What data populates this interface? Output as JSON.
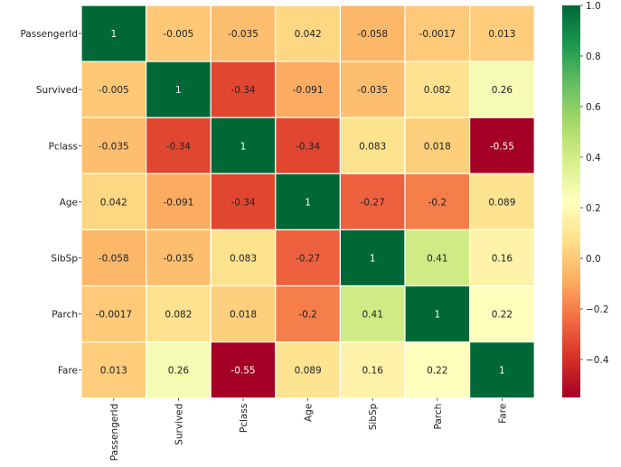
{
  "chart_data": {
    "type": "heatmap",
    "title": "",
    "xlabel": "",
    "ylabel": "",
    "rows": [
      "PassengerId",
      "Survived",
      "Pclass",
      "Age",
      "SibSp",
      "Parch",
      "Fare"
    ],
    "columns": [
      "PassengerId",
      "Survived",
      "Pclass",
      "Age",
      "SibSp",
      "Parch",
      "Fare"
    ],
    "values": [
      [
        1,
        -0.005,
        -0.035,
        0.042,
        -0.058,
        -0.0017,
        0.013
      ],
      [
        -0.005,
        1,
        -0.34,
        -0.091,
        -0.035,
        0.082,
        0.26
      ],
      [
        -0.035,
        -0.34,
        1,
        -0.34,
        0.083,
        0.018,
        -0.55
      ],
      [
        0.042,
        -0.091,
        -0.34,
        1,
        -0.27,
        -0.2,
        0.089
      ],
      [
        -0.058,
        -0.035,
        0.083,
        -0.27,
        1,
        0.41,
        0.16
      ],
      [
        -0.0017,
        0.082,
        0.018,
        -0.2,
        0.41,
        1,
        0.22
      ],
      [
        0.013,
        0.26,
        -0.55,
        0.089,
        0.16,
        0.22,
        1
      ]
    ],
    "cell_labels": [
      [
        "1",
        "-0.005",
        "-0.035",
        "0.042",
        "-0.058",
        "-0.0017",
        "0.013"
      ],
      [
        "-0.005",
        "1",
        "-0.34",
        "-0.091",
        "-0.035",
        "0.082",
        "0.26"
      ],
      [
        "-0.035",
        "-0.34",
        "1",
        "-0.34",
        "0.083",
        "0.018",
        "-0.55"
      ],
      [
        "0.042",
        "-0.091",
        "-0.34",
        "1",
        "-0.27",
        "-0.2",
        "0.089"
      ],
      [
        "-0.058",
        "-0.035",
        "0.083",
        "-0.27",
        "1",
        "0.41",
        "0.16"
      ],
      [
        "-0.0017",
        "0.082",
        "0.018",
        "-0.2",
        "0.41",
        "1",
        "0.22"
      ],
      [
        "0.013",
        "0.26",
        "-0.55",
        "0.089",
        "0.16",
        "0.22",
        "1"
      ]
    ],
    "colormap": "RdYlGn",
    "colormap_stops": [
      "#a50026",
      "#d73027",
      "#f46d43",
      "#fdae61",
      "#fee08b",
      "#ffffbf",
      "#d9ef8b",
      "#a6d96a",
      "#66bd63",
      "#1a9850",
      "#006837"
    ],
    "vmin": -0.55,
    "vmax": 1,
    "colorbar_ticks": [
      1.0,
      0.8,
      0.6,
      0.4,
      0.2,
      0.0,
      -0.2,
      -0.4
    ],
    "colorbar_tick_labels": [
      "1.0",
      "0.8",
      "0.6",
      "0.4",
      "0.2",
      "0.0",
      "−0.2",
      "−0.4"
    ],
    "x_tick_rotation": "vertical",
    "grid_line_color": "#ffffff",
    "dark_text_color": "#222222",
    "light_text_color": "#ffffff"
  }
}
